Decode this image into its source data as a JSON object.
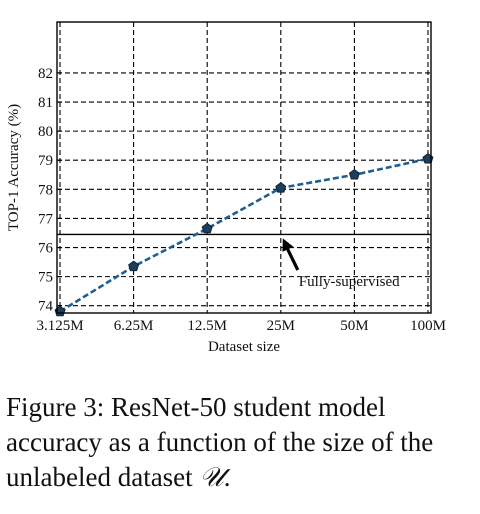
{
  "chart_data": {
    "type": "line",
    "xlabel": "Dataset size",
    "ylabel": "TOP-1 Accuracy (%)",
    "categories": [
      "3.125M",
      "6.25M",
      "12.5M",
      "25M",
      "50M",
      "100M"
    ],
    "y_ticks": [
      74,
      75,
      76,
      77,
      78,
      79,
      80,
      81,
      82
    ],
    "ylim": [
      73.75,
      83.75
    ],
    "grid": true,
    "series": [
      {
        "values": [
          73.8,
          75.35,
          76.65,
          78.05,
          78.5,
          79.05
        ]
      }
    ],
    "reference_line": {
      "value": 76.45,
      "label": "Fully-supervised"
    },
    "colors": {
      "line": "#1f5f8f",
      "marker": "#1c3f5c",
      "reference": "#000000"
    }
  },
  "caption": {
    "prefix": "Figure 3: ResNet-50 student model accuracy as a function of the size of the unlabeled dataset ",
    "symbol": "𝒰",
    "suffix": "."
  }
}
